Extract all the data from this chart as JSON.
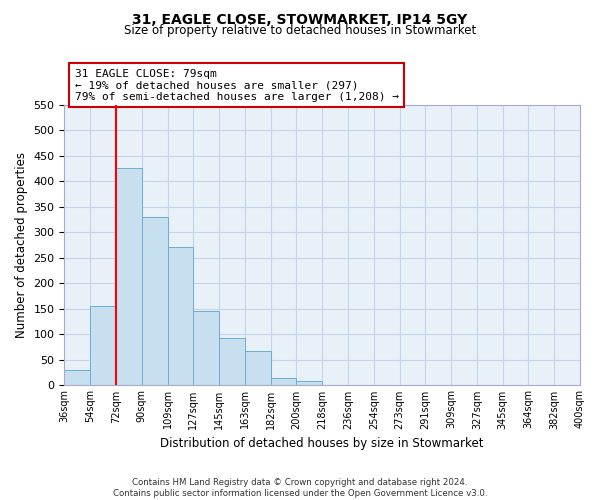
{
  "title1": "31, EAGLE CLOSE, STOWMARKET, IP14 5GY",
  "title2": "Size of property relative to detached houses in Stowmarket",
  "xlabel": "Distribution of detached houses by size in Stowmarket",
  "ylabel": "Number of detached properties",
  "bin_labels": [
    "36sqm",
    "54sqm",
    "72sqm",
    "90sqm",
    "109sqm",
    "127sqm",
    "145sqm",
    "163sqm",
    "182sqm",
    "200sqm",
    "218sqm",
    "236sqm",
    "254sqm",
    "273sqm",
    "291sqm",
    "309sqm",
    "327sqm",
    "345sqm",
    "364sqm",
    "382sqm",
    "400sqm"
  ],
  "bar_values": [
    30,
    155,
    425,
    330,
    270,
    145,
    92,
    67,
    13,
    9,
    0,
    0,
    0,
    0,
    0,
    0,
    0,
    0,
    0,
    0
  ],
  "bar_color": "#c8dff0",
  "bar_edge_color": "#6baed6",
  "vline_color": "red",
  "ylim": [
    0,
    550
  ],
  "yticks": [
    0,
    50,
    100,
    150,
    200,
    250,
    300,
    350,
    400,
    450,
    500,
    550
  ],
  "annotation_title": "31 EAGLE CLOSE: 79sqm",
  "annotation_line1": "← 19% of detached houses are smaller (297)",
  "annotation_line2": "79% of semi-detached houses are larger (1,208) →",
  "footnote1": "Contains HM Land Registry data © Crown copyright and database right 2024.",
  "footnote2": "Contains public sector information licensed under the Open Government Licence v3.0.",
  "grid_color": "#c5d5e8",
  "background_color": "#e8f0f8"
}
